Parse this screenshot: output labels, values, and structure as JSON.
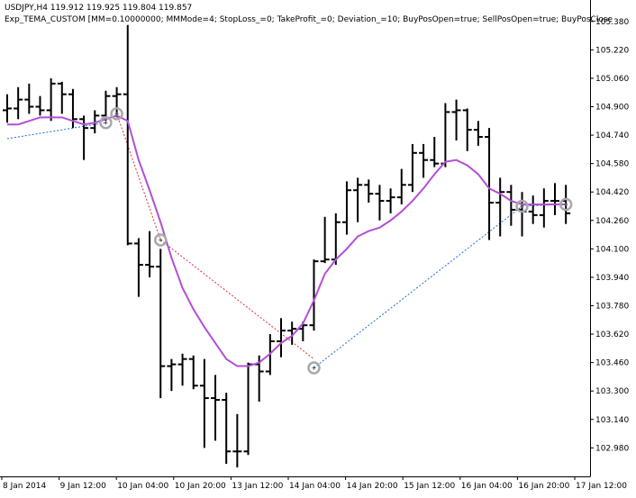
{
  "header": {
    "symbol_line": "USDJPY,H4  119.912 119.925 119.804 119.857",
    "expert_line": "Exp_TEMA_CUSTOM [MM=0.10000000; MMMode=4; StopLoss_=0; TakeProfit_=0; Deviation_=10; BuyPosOpen=true; SellPosOpen=true; BuyPosClose"
  },
  "chart_data": {
    "type": "ohlc",
    "ylim": [
      102.86,
      105.46
    ],
    "y_ticks": [
      "105.380",
      "105.220",
      "105.060",
      "104.900",
      "104.740",
      "104.580",
      "104.420",
      "104.260",
      "104.100",
      "103.940",
      "103.780",
      "103.620",
      "103.460",
      "103.300",
      "103.140",
      "102.980"
    ],
    "x_ticks": [
      "8 Jan 2014",
      "9 Jan 12:00",
      "10 Jan 04:00",
      "10 Jan 20:00",
      "13 Jan 12:00",
      "14 Jan 04:00",
      "14 Jan 20:00",
      "15 Jan 12:00",
      "16 Jan 04:00",
      "16 Jan 20:00",
      "17 Jan 12:00"
    ],
    "bars": [
      {
        "o": 104.88,
        "h": 104.97,
        "l": 104.81,
        "c": 104.89
      },
      {
        "o": 104.89,
        "h": 105.01,
        "l": 104.83,
        "c": 104.94
      },
      {
        "o": 104.94,
        "h": 105.03,
        "l": 104.86,
        "c": 104.9
      },
      {
        "o": 104.9,
        "h": 104.96,
        "l": 104.85,
        "c": 104.88
      },
      {
        "o": 104.88,
        "h": 105.06,
        "l": 104.82,
        "c": 105.03
      },
      {
        "o": 105.03,
        "h": 105.04,
        "l": 104.86,
        "c": 104.97
      },
      {
        "o": 104.97,
        "h": 105.0,
        "l": 104.78,
        "c": 104.83
      },
      {
        "o": 104.83,
        "h": 104.85,
        "l": 104.6,
        "c": 104.78
      },
      {
        "o": 104.78,
        "h": 104.88,
        "l": 104.75,
        "c": 104.85
      },
      {
        "o": 104.85,
        "h": 104.99,
        "l": 104.82,
        "c": 104.96
      },
      {
        "o": 104.96,
        "h": 105.01,
        "l": 104.84,
        "c": 104.97
      },
      {
        "o": 104.97,
        "h": 105.36,
        "l": 104.12,
        "c": 104.13
      },
      {
        "o": 104.13,
        "h": 104.16,
        "l": 103.83,
        "c": 104.01
      },
      {
        "o": 104.01,
        "h": 104.2,
        "l": 103.94,
        "c": 104.0
      },
      {
        "o": 104.0,
        "h": 104.1,
        "l": 103.26,
        "c": 103.44
      },
      {
        "o": 103.44,
        "h": 103.48,
        "l": 103.3,
        "c": 103.45
      },
      {
        "o": 103.45,
        "h": 103.51,
        "l": 103.33,
        "c": 103.48
      },
      {
        "o": 103.48,
        "h": 103.5,
        "l": 103.31,
        "c": 103.33
      },
      {
        "o": 103.33,
        "h": 103.48,
        "l": 102.98,
        "c": 103.26
      },
      {
        "o": 103.26,
        "h": 103.39,
        "l": 103.02,
        "c": 103.25
      },
      {
        "o": 103.25,
        "h": 103.29,
        "l": 102.89,
        "c": 102.96
      },
      {
        "o": 102.96,
        "h": 103.17,
        "l": 102.87,
        "c": 102.96
      },
      {
        "o": 102.96,
        "h": 103.46,
        "l": 102.94,
        "c": 103.45
      },
      {
        "o": 103.45,
        "h": 103.5,
        "l": 103.24,
        "c": 103.41
      },
      {
        "o": 103.41,
        "h": 103.62,
        "l": 103.39,
        "c": 103.58
      },
      {
        "o": 103.58,
        "h": 103.71,
        "l": 103.49,
        "c": 103.64
      },
      {
        "o": 103.64,
        "h": 103.69,
        "l": 103.56,
        "c": 103.65
      },
      {
        "o": 103.65,
        "h": 103.69,
        "l": 103.58,
        "c": 103.67
      },
      {
        "o": 103.67,
        "h": 104.04,
        "l": 103.64,
        "c": 104.03
      },
      {
        "o": 104.03,
        "h": 104.28,
        "l": 104.02,
        "c": 104.04
      },
      {
        "o": 104.04,
        "h": 104.3,
        "l": 104.01,
        "c": 104.25
      },
      {
        "o": 104.25,
        "h": 104.48,
        "l": 104.18,
        "c": 104.43
      },
      {
        "o": 104.43,
        "h": 104.5,
        "l": 104.25,
        "c": 104.46
      },
      {
        "o": 104.46,
        "h": 104.49,
        "l": 104.36,
        "c": 104.41
      },
      {
        "o": 104.41,
        "h": 104.46,
        "l": 104.26,
        "c": 104.37
      },
      {
        "o": 104.37,
        "h": 104.44,
        "l": 104.3,
        "c": 104.39
      },
      {
        "o": 104.39,
        "h": 104.55,
        "l": 104.35,
        "c": 104.46
      },
      {
        "o": 104.46,
        "h": 104.69,
        "l": 104.42,
        "c": 104.64
      },
      {
        "o": 104.64,
        "h": 104.69,
        "l": 104.5,
        "c": 104.6
      },
      {
        "o": 104.6,
        "h": 104.73,
        "l": 104.56,
        "c": 104.58
      },
      {
        "o": 104.58,
        "h": 104.92,
        "l": 104.56,
        "c": 104.87
      },
      {
        "o": 104.87,
        "h": 104.94,
        "l": 104.71,
        "c": 104.88
      },
      {
        "o": 104.88,
        "h": 104.89,
        "l": 104.65,
        "c": 104.77
      },
      {
        "o": 104.77,
        "h": 104.82,
        "l": 104.68,
        "c": 104.73
      },
      {
        "o": 104.73,
        "h": 104.78,
        "l": 104.15,
        "c": 104.36
      },
      {
        "o": 104.36,
        "h": 104.5,
        "l": 104.17,
        "c": 104.42
      },
      {
        "o": 104.42,
        "h": 104.46,
        "l": 104.23,
        "c": 104.32
      },
      {
        "o": 104.32,
        "h": 104.42,
        "l": 104.17,
        "c": 104.31
      },
      {
        "o": 104.31,
        "h": 104.4,
        "l": 104.24,
        "c": 104.29
      },
      {
        "o": 104.29,
        "h": 104.44,
        "l": 104.22,
        "c": 104.37
      },
      {
        "o": 104.37,
        "h": 104.47,
        "l": 104.29,
        "c": 104.37
      },
      {
        "o": 104.37,
        "h": 104.46,
        "l": 104.24,
        "c": 104.3
      }
    ],
    "tema": [
      104.8,
      104.8,
      104.82,
      104.84,
      104.84,
      104.84,
      104.82,
      104.8,
      104.81,
      104.83,
      104.85,
      104.82,
      104.6,
      104.43,
      104.25,
      104.05,
      103.88,
      103.76,
      103.66,
      103.57,
      103.48,
      103.44,
      103.44,
      103.46,
      103.51,
      103.57,
      103.61,
      103.68,
      103.81,
      103.96,
      104.04,
      104.1,
      104.17,
      104.2,
      104.22,
      104.26,
      104.31,
      104.37,
      104.44,
      104.52,
      104.59,
      104.6,
      104.57,
      104.52,
      104.44,
      104.41,
      104.37,
      104.35,
      104.35,
      104.35,
      104.35,
      104.35
    ],
    "trades": [
      {
        "type": "buy",
        "from": {
          "bar": 0,
          "price": 104.72
        },
        "to": {
          "bar": 9,
          "price": 104.81
        }
      },
      {
        "type": "sell",
        "from": {
          "bar": 10,
          "price": 104.86
        },
        "to": {
          "bar": 14,
          "price": 104.15
        }
      },
      {
        "type": "sell",
        "from": {
          "bar": 14,
          "price": 104.15
        },
        "to": {
          "bar": 28,
          "price": 103.48
        }
      },
      {
        "type": "buy",
        "from": {
          "bar": 28,
          "price": 103.43
        },
        "to": {
          "bar": 47,
          "price": 104.34
        }
      },
      {
        "type": "buy",
        "from": {
          "bar": 47,
          "price": 104.34
        },
        "to": {
          "bar": 51,
          "price": 104.35
        }
      }
    ],
    "markers": [
      {
        "bar": 9,
        "price": 104.81,
        "kind": "exit"
      },
      {
        "bar": 10,
        "price": 104.86,
        "kind": "entry"
      },
      {
        "bar": 14,
        "price": 104.15,
        "kind": "entry"
      },
      {
        "bar": 28,
        "price": 103.43,
        "kind": "entry"
      },
      {
        "bar": 47,
        "price": 104.34,
        "kind": "entry"
      },
      {
        "bar": 51,
        "price": 104.35,
        "kind": "entry"
      }
    ],
    "colors": {
      "bars": "#000000",
      "tema": "#b34fd6",
      "buy_line": "#1e6fd9",
      "sell_line": "#e03030",
      "marker": "#a8a8a8"
    }
  }
}
